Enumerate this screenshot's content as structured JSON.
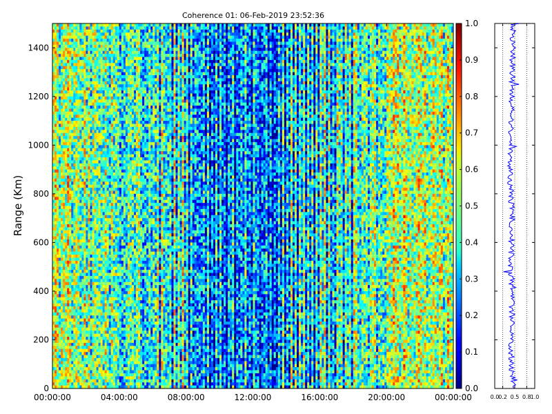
{
  "chart_data": [
    {
      "type": "heatmap",
      "title": "Coherence 01: 06-Feb-2019 23:52:36",
      "xlabel": "",
      "ylabel": "Range (Km)",
      "x_tick_labels": [
        "00:00:00",
        "04:00:00",
        "08:00:00",
        "12:00:00",
        "16:00:00",
        "20:00:00",
        "00:00:00"
      ],
      "x_range_hours": [
        0,
        24
      ],
      "y_ticks": [
        0,
        200,
        400,
        600,
        800,
        1000,
        1200,
        1400
      ],
      "ylim": [
        0,
        1500
      ],
      "colormap": "jet",
      "colorbar_ticks": [
        0.0,
        0.1,
        0.2,
        0.3,
        0.4,
        0.5,
        0.6,
        0.7,
        0.8,
        0.9,
        1.0
      ],
      "colorbar_tick_labels": [
        "0.0",
        "0.1",
        "0.2",
        "0.3",
        "0.4",
        "0.5",
        "0.6",
        "0.7",
        "0.8",
        "0.9",
        "1.0"
      ],
      "clim": [
        0,
        1
      ],
      "time_mean_coherence_profile": [
        {
          "start_hour": 0,
          "end_hour": 2,
          "mean": 0.52
        },
        {
          "start_hour": 2,
          "end_hour": 4,
          "mean": 0.48
        },
        {
          "start_hour": 4,
          "end_hour": 6,
          "mean": 0.42
        },
        {
          "start_hour": 6,
          "end_hour": 8,
          "mean": 0.3
        },
        {
          "start_hour": 8,
          "end_hour": 10,
          "mean": 0.2
        },
        {
          "start_hour": 10,
          "end_hour": 12,
          "mean": 0.16
        },
        {
          "start_hour": 12,
          "end_hour": 14,
          "mean": 0.18
        },
        {
          "start_hour": 14,
          "end_hour": 16,
          "mean": 0.24
        },
        {
          "start_hour": 16,
          "end_hour": 18,
          "mean": 0.3
        },
        {
          "start_hour": 18,
          "end_hour": 20,
          "mean": 0.46
        },
        {
          "start_hour": 20,
          "end_hour": 22,
          "mean": 0.55
        },
        {
          "start_hour": 22,
          "end_hour": 24,
          "mean": 0.52
        }
      ],
      "grid": false
    },
    {
      "type": "line",
      "title": "",
      "xlabel": "",
      "ylabel": "",
      "xlim": [
        0,
        1
      ],
      "x_tick_labels": [
        "0.0",
        "0.2",
        "0.5",
        "0.8",
        "1.0"
      ],
      "x_ticks": [
        0.0,
        0.2,
        0.5,
        0.8,
        1.0
      ],
      "ylim": [
        0,
        1500
      ],
      "y": [
        0,
        100,
        200,
        300,
        400,
        500,
        600,
        700,
        800,
        900,
        1000,
        1100,
        1200,
        1300,
        1400,
        1500
      ],
      "x": [
        0.46,
        0.42,
        0.41,
        0.43,
        0.44,
        0.4,
        0.42,
        0.44,
        0.4,
        0.38,
        0.41,
        0.42,
        0.43,
        0.44,
        0.45,
        0.46
      ],
      "grid": "vertical dotted"
    }
  ]
}
